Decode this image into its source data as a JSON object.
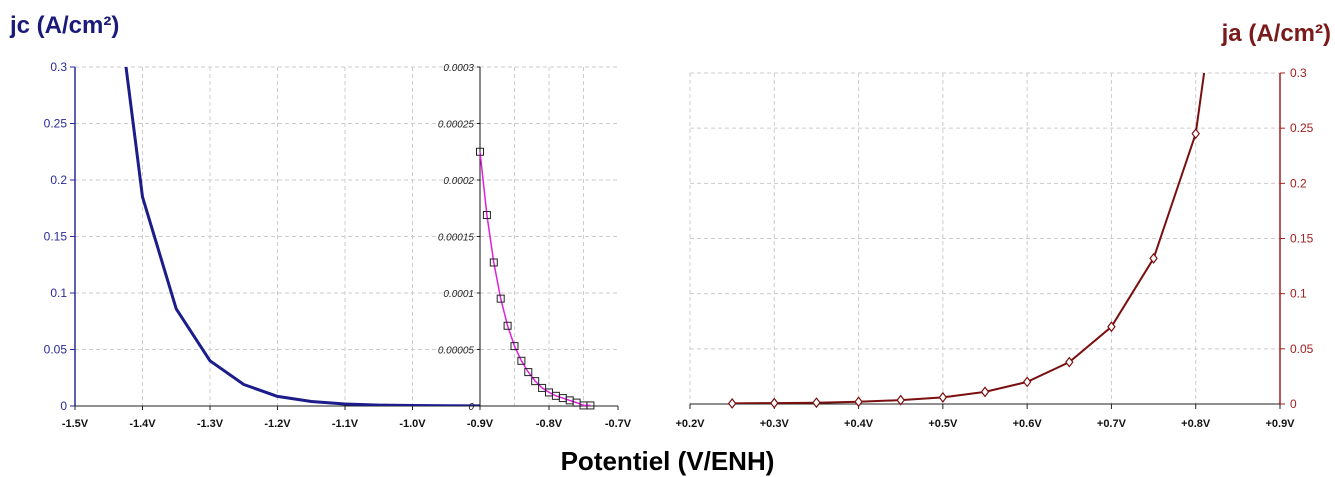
{
  "chart_data": [
    {
      "type": "line",
      "id": "cathodic",
      "ylabel": "jc (A/cm²)",
      "ylabel_color": "#1a1a7a",
      "line_color": "#1c1c8a",
      "xlim": [
        -1.5,
        -0.9
      ],
      "ylim": [
        0,
        0.3
      ],
      "x_tick_labels": [
        "-1.5V",
        "-1.4V",
        "-1.3V",
        "-1.2V",
        "-1.1V",
        "-1.0V",
        "-0.9V"
      ],
      "y_tick_labels": [
        "0",
        "0.05",
        "0.1",
        "0.15",
        "0.2",
        "0.25",
        "0.3"
      ],
      "tick_color": "#2a2a9a",
      "grid": true,
      "series": [
        {
          "x": [
            -1.45,
            -1.4,
            -1.35,
            -1.3,
            -1.25,
            -1.2,
            -1.15,
            -1.1,
            -1.05,
            -1.0,
            -0.95,
            -0.9
          ],
          "y": [
            0.42,
            0.185,
            0.086,
            0.04,
            0.019,
            0.0085,
            0.004,
            0.0018,
            0.0008,
            0.0004,
            0.0002,
            0.0001
          ]
        }
      ]
    },
    {
      "type": "line",
      "id": "cathodic-zoom",
      "line_color": "#e020e0",
      "marker": "square",
      "xlim": [
        -0.9,
        -0.7
      ],
      "ylim": [
        0,
        0.0003
      ],
      "x_tick_labels": [
        "-0.8V",
        "-0.7V"
      ],
      "y_tick_labels": [
        "0",
        "0.00005",
        "0.0001",
        "0.00015",
        "0.0002",
        "0.00025",
        "0.0003"
      ],
      "grid": true,
      "series": [
        {
          "x": [
            -0.9,
            -0.89,
            -0.88,
            -0.87,
            -0.86,
            -0.85,
            -0.84,
            -0.83,
            -0.82,
            -0.81,
            -0.8,
            -0.79,
            -0.78,
            -0.77,
            -0.76,
            -0.75,
            -0.74
          ],
          "y": [
            0.000225,
            0.000169,
            0.000127,
            9.5e-05,
            7.1e-05,
            5.3e-05,
            4e-05,
            3e-05,
            2.2e-05,
            1.6e-05,
            1.2e-05,
            9e-06,
            7e-06,
            5e-06,
            3e-06,
            5e-07,
            5e-07
          ]
        }
      ]
    },
    {
      "type": "line",
      "id": "anodic",
      "ylabel": "ja (A/cm²)",
      "ylabel_color": "#7a1a1a",
      "line_color": "#7a0f0f",
      "marker": "diamond",
      "xlim": [
        0.2,
        0.9
      ],
      "ylim": [
        0,
        0.3
      ],
      "x_tick_labels": [
        "+0.2V",
        "+0.3V",
        "+0.4V",
        "+0.5V",
        "+0.6V",
        "+0.7V",
        "+0.8V",
        "+0.9V"
      ],
      "y_tick_labels": [
        "0",
        "0.05",
        "0.1",
        "0.15",
        "0.2",
        "0.25",
        "0.3"
      ],
      "tick_color": "#a02020",
      "grid": true,
      "series": [
        {
          "x": [
            0.25,
            0.3,
            0.35,
            0.4,
            0.45,
            0.5,
            0.55,
            0.6,
            0.65,
            0.7,
            0.75,
            0.8,
            0.81
          ],
          "y": [
            0.0005,
            0.0008,
            0.0012,
            0.002,
            0.0035,
            0.006,
            0.011,
            0.02,
            0.038,
            0.07,
            0.132,
            0.245,
            0.3
          ]
        }
      ]
    }
  ],
  "xlabel": "Potentiel (V/ENH)"
}
